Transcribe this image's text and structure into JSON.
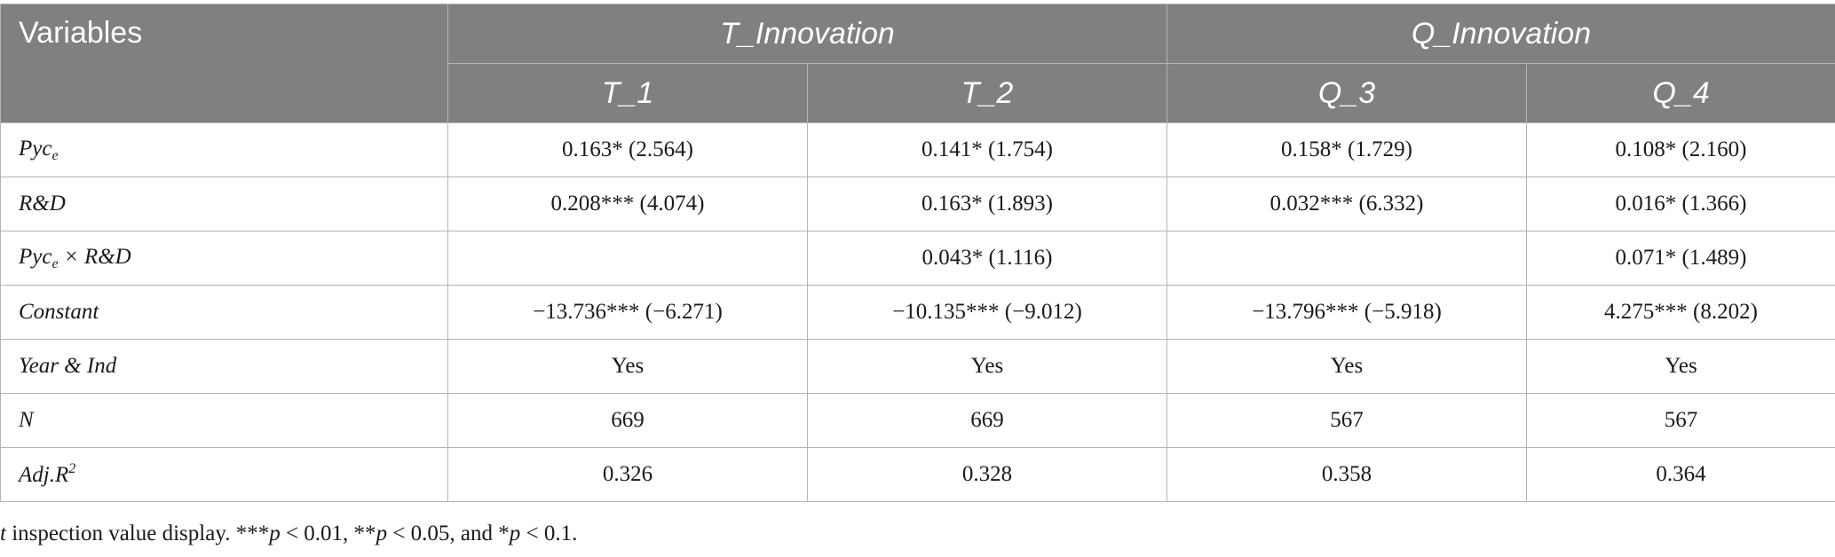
{
  "table": {
    "header": {
      "variables_label": "Variables",
      "groups": [
        "T_Innovation",
        "Q_Innovation"
      ],
      "columns": [
        "T_1",
        "T_2",
        "Q_3",
        "Q_4"
      ]
    },
    "rows": [
      {
        "var_main": "Pyc",
        "var_sub": "e",
        "var_rest": "",
        "cells": [
          "0.163* (2.564)",
          "0.141* (1.754)",
          "0.158* (1.729)",
          "0.108* (2.160)"
        ]
      },
      {
        "var_main": "R&D",
        "var_sub": "",
        "var_rest": "",
        "cells": [
          "0.208*** (4.074)",
          "0.163* (1.893)",
          "0.032*** (6.332)",
          "0.016* (1.366)"
        ]
      },
      {
        "var_main": "Pyc",
        "var_sub": "e",
        "var_rest": " × R&D",
        "cells": [
          "",
          "0.043* (1.116)",
          "",
          "0.071* (1.489)"
        ]
      },
      {
        "var_main": "Constant",
        "var_sub": "",
        "var_rest": "",
        "cells": [
          "−13.736*** (−6.271)",
          "−10.135*** (−9.012)",
          "−13.796*** (−5.918)",
          "4.275*** (8.202)"
        ]
      },
      {
        "var_main": "Year & Ind",
        "var_sub": "",
        "var_rest": "",
        "cells": [
          "Yes",
          "Yes",
          "Yes",
          "Yes"
        ]
      },
      {
        "var_main": "N",
        "var_sub": "",
        "var_rest": "",
        "cells": [
          "669",
          "669",
          "567",
          "567"
        ]
      },
      {
        "var_main": "Adj.R",
        "var_sup": "2",
        "var_sub": "",
        "var_rest": "",
        "cells": [
          "0.326",
          "0.328",
          "0.358",
          "0.364"
        ]
      }
    ]
  },
  "note": {
    "t_letter": "t",
    "s1": " inspection value display. ***",
    "p1": "p",
    "s2": " < 0.01, **",
    "p2": "p",
    "s3": " < 0.05, and *",
    "p3": "p",
    "s4": " < 0.1."
  }
}
